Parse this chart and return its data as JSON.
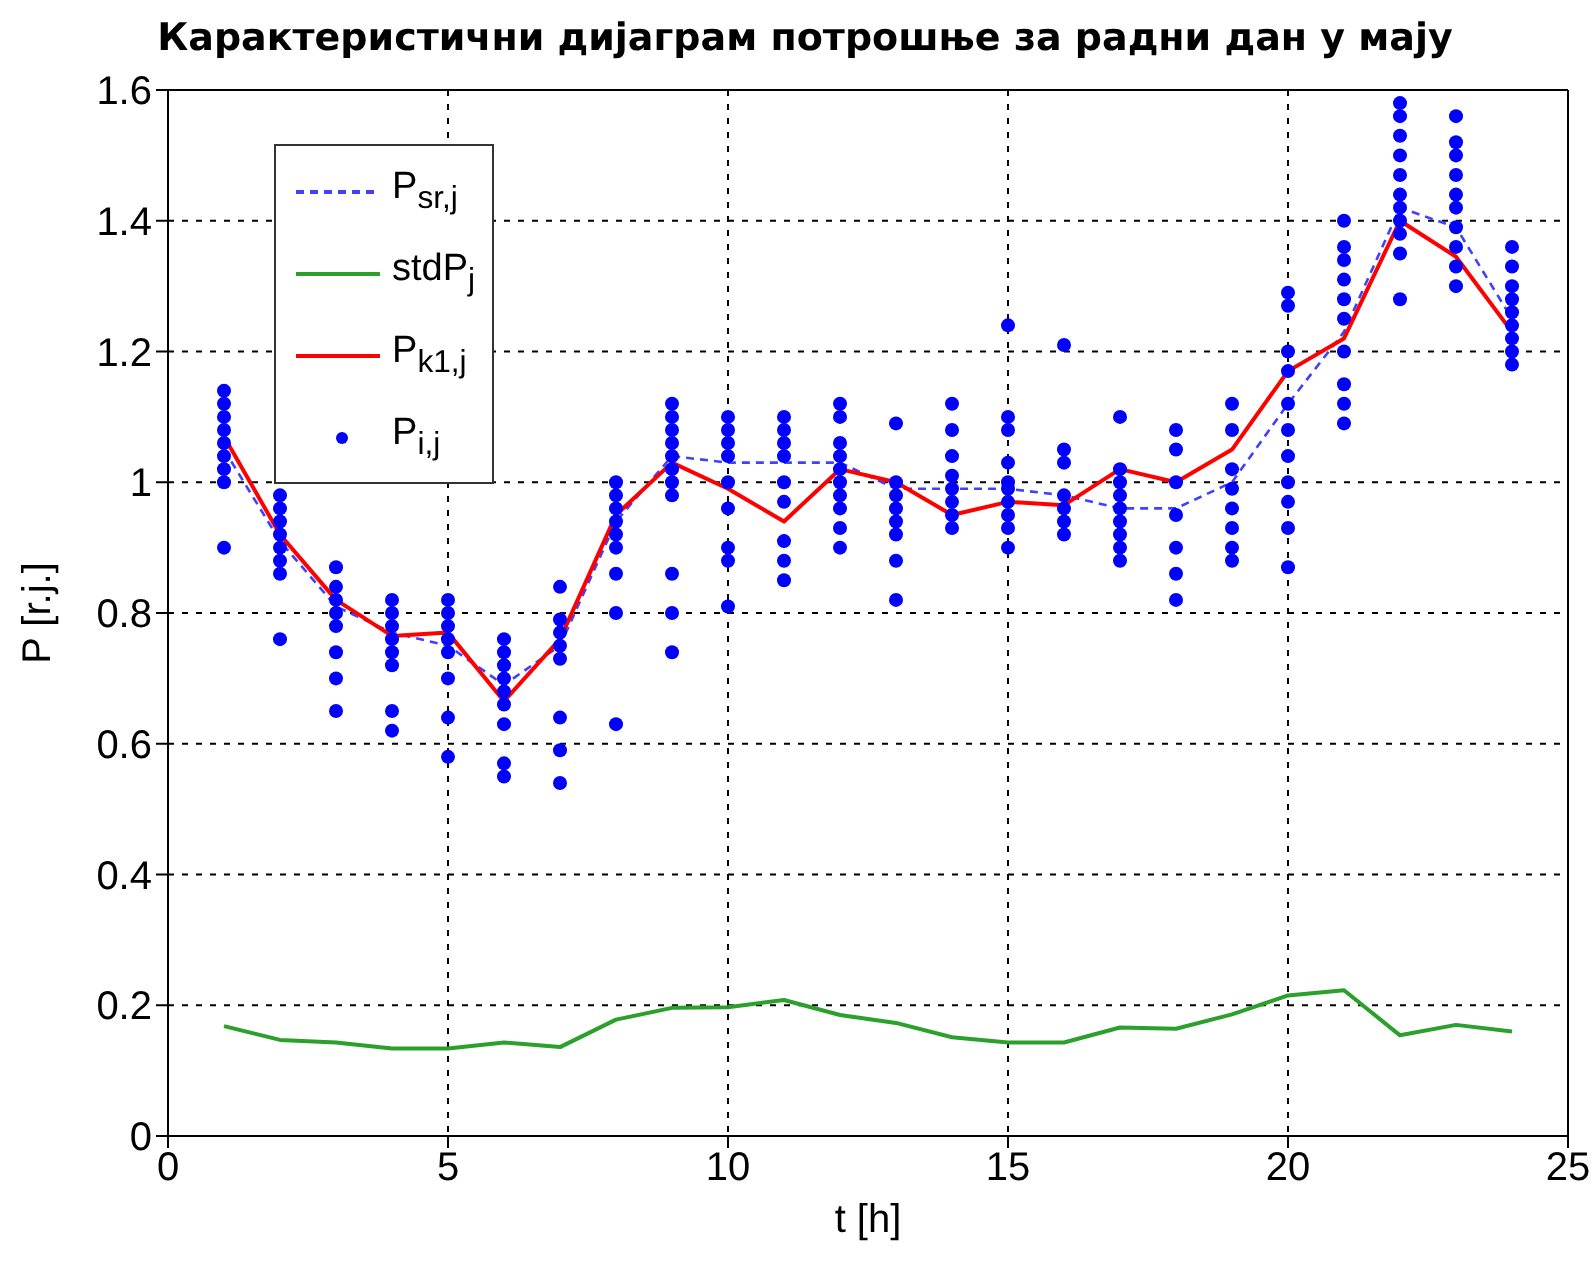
{
  "chart_data": {
    "type": "line",
    "title": "Карактеристични дијаграм потрошње за радни дан у мају",
    "xlabel": "t [h]",
    "ylabel": "P [r.j.]",
    "xlim": [
      0,
      25
    ],
    "xticks": [
      0,
      5,
      10,
      15,
      20,
      25
    ],
    "ylim": [
      0,
      1.6
    ],
    "yticks": [
      0,
      0.2,
      0.4,
      0.6,
      0.8,
      1,
      1.2,
      1.4,
      1.6
    ],
    "grid": true,
    "legend": "top left",
    "x": [
      1,
      2,
      3,
      4,
      5,
      6,
      7,
      8,
      9,
      10,
      11,
      12,
      13,
      14,
      15,
      16,
      17,
      18,
      19,
      20,
      21,
      22,
      23,
      24
    ],
    "series": [
      {
        "name": "P$_{sr,j}$",
        "color": "#4040ff",
        "line_style": "dashed",
        "values": [
          1.05,
          0.91,
          0.81,
          0.77,
          0.75,
          0.69,
          0.75,
          0.94,
          1.04,
          1.03,
          1.03,
          1.03,
          0.99,
          0.99,
          0.99,
          0.98,
          0.96,
          0.96,
          1.0,
          1.12,
          1.23,
          1.42,
          1.39,
          1.25
        ]
      },
      {
        "name": "stdP$_{j}$",
        "color": "#2ca02c",
        "line_style": "solid",
        "values": [
          0.168,
          0.147,
          0.143,
          0.134,
          0.134,
          0.143,
          0.136,
          0.178,
          0.196,
          0.197,
          0.208,
          0.185,
          0.173,
          0.151,
          0.143,
          0.143,
          0.166,
          0.164,
          0.186,
          0.215,
          0.223,
          0.154,
          0.17,
          0.16
        ]
      },
      {
        "name": "P$_{k1,j}$",
        "color": "#ff0000",
        "line_style": "solid",
        "values": [
          1.07,
          0.92,
          0.82,
          0.765,
          0.77,
          0.665,
          0.76,
          0.95,
          1.03,
          0.99,
          0.94,
          1.02,
          1.0,
          0.95,
          0.97,
          0.965,
          1.02,
          1.0,
          1.05,
          1.17,
          1.22,
          1.4,
          1.345,
          1.23
        ]
      },
      {
        "name": "P$_{i,j}$",
        "type": "scatter",
        "marker": "circle",
        "color": "#0000ff",
        "x": [
          1,
          1,
          1,
          1,
          1,
          1,
          1,
          1,
          1,
          2,
          2,
          2,
          2,
          2,
          2,
          2,
          2,
          3,
          3,
          3,
          3,
          3,
          3,
          3,
          3,
          4,
          4,
          4,
          4,
          4,
          4,
          4,
          4,
          5,
          5,
          5,
          5,
          5,
          5,
          5,
          5,
          6,
          6,
          6,
          6,
          6,
          6,
          6,
          6,
          6,
          7,
          7,
          7,
          7,
          7,
          7,
          7,
          7,
          8,
          8,
          8,
          8,
          8,
          8,
          8,
          8,
          8,
          9,
          9,
          9,
          9,
          9,
          9,
          9,
          9,
          9,
          9,
          9,
          10,
          10,
          10,
          10,
          10,
          10,
          10,
          10,
          10,
          11,
          11,
          11,
          11,
          11,
          11,
          11,
          11,
          11,
          12,
          12,
          12,
          12,
          12,
          12,
          12,
          12,
          12,
          12,
          13,
          13,
          13,
          13,
          13,
          13,
          13,
          13,
          14,
          14,
          14,
          14,
          14,
          14,
          14,
          14,
          15,
          15,
          15,
          15,
          15,
          15,
          15,
          15,
          15,
          15,
          16,
          16,
          16,
          16,
          16,
          16,
          16,
          17,
          17,
          17,
          17,
          17,
          17,
          17,
          17,
          17,
          18,
          18,
          18,
          18,
          18,
          18,
          18,
          19,
          19,
          19,
          19,
          19,
          19,
          19,
          19,
          20,
          20,
          20,
          20,
          20,
          20,
          20,
          20,
          20,
          20,
          20,
          21,
          21,
          21,
          21,
          21,
          21,
          21,
          21,
          21,
          21,
          22,
          22,
          22,
          22,
          22,
          22,
          22,
          22,
          22,
          22,
          22,
          23,
          23,
          23,
          23,
          23,
          23,
          23,
          23,
          23,
          23,
          24,
          24,
          24,
          24,
          24,
          24,
          24,
          24,
          24
        ],
        "values": [
          0.9,
          1.0,
          1.02,
          1.04,
          1.06,
          1.08,
          1.1,
          1.12,
          1.14,
          0.76,
          0.86,
          0.88,
          0.9,
          0.92,
          0.94,
          0.96,
          0.98,
          0.65,
          0.7,
          0.74,
          0.78,
          0.8,
          0.82,
          0.84,
          0.87,
          0.62,
          0.65,
          0.72,
          0.74,
          0.76,
          0.78,
          0.8,
          0.82,
          0.58,
          0.64,
          0.7,
          0.74,
          0.76,
          0.78,
          0.8,
          0.82,
          0.55,
          0.57,
          0.63,
          0.66,
          0.68,
          0.7,
          0.72,
          0.74,
          0.76,
          0.54,
          0.59,
          0.64,
          0.73,
          0.75,
          0.77,
          0.79,
          0.84,
          0.63,
          0.8,
          0.86,
          0.9,
          0.92,
          0.94,
          0.96,
          0.98,
          1.0,
          0.74,
          0.8,
          0.86,
          0.98,
          1.0,
          1.02,
          1.04,
          1.06,
          1.08,
          1.1,
          1.12,
          0.81,
          0.88,
          0.9,
          0.96,
          1.0,
          1.04,
          1.06,
          1.08,
          1.1,
          0.85,
          0.88,
          0.91,
          0.97,
          1.0,
          1.04,
          1.06,
          1.08,
          1.1,
          0.9,
          0.93,
          0.96,
          0.98,
          1.0,
          1.02,
          1.04,
          1.06,
          1.1,
          1.12,
          0.82,
          0.88,
          0.92,
          0.94,
          0.96,
          0.98,
          1.0,
          1.09,
          0.93,
          0.95,
          0.97,
          0.99,
          1.01,
          1.04,
          1.08,
          1.12,
          0.9,
          0.93,
          0.95,
          0.97,
          0.99,
          1.0,
          1.03,
          1.08,
          1.1,
          1.24,
          0.92,
          0.94,
          0.96,
          0.98,
          1.03,
          1.05,
          1.21,
          0.88,
          0.9,
          0.92,
          0.94,
          0.96,
          0.98,
          1.0,
          1.02,
          1.1,
          0.82,
          0.86,
          0.9,
          0.95,
          1.0,
          1.05,
          1.08,
          0.88,
          0.9,
          0.93,
          0.96,
          0.99,
          1.02,
          1.08,
          1.12,
          0.87,
          0.93,
          0.97,
          1.0,
          1.04,
          1.08,
          1.12,
          1.17,
          1.2,
          1.27,
          1.29,
          1.09,
          1.12,
          1.15,
          1.2,
          1.25,
          1.28,
          1.31,
          1.34,
          1.36,
          1.4,
          1.28,
          1.35,
          1.38,
          1.4,
          1.42,
          1.44,
          1.47,
          1.5,
          1.53,
          1.56,
          1.58,
          1.3,
          1.33,
          1.36,
          1.39,
          1.42,
          1.44,
          1.47,
          1.5,
          1.52,
          1.56,
          1.18,
          1.2,
          1.22,
          1.24,
          1.26,
          1.28,
          1.3,
          1.33,
          1.36
        ]
      }
    ]
  }
}
